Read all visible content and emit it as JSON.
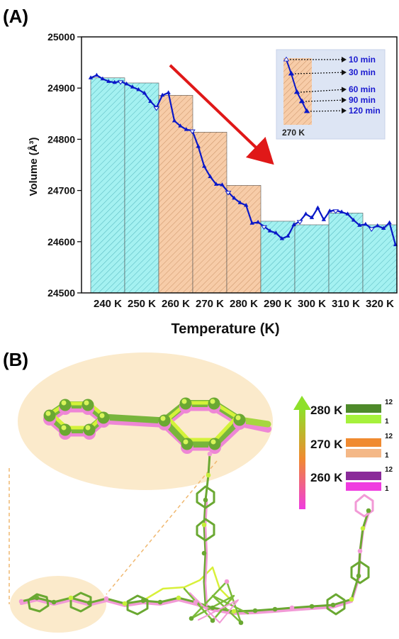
{
  "panel_a": {
    "letter": "(A)"
  },
  "panel_b": {
    "letter": "(B)",
    "legend": {
      "groups": [
        {
          "label": "280 K",
          "bars": [
            {
              "label": "12",
              "color": "#4e8a2a"
            },
            {
              "label": "1",
              "color": "#a6f13c"
            }
          ]
        },
        {
          "label": "270 K",
          "bars": [
            {
              "label": "12",
              "color": "#f08a30"
            },
            {
              "label": "1",
              "color": "#f4b887"
            }
          ]
        },
        {
          "label": "260 K",
          "bars": [
            {
              "label": "12",
              "color": "#8a2a99"
            },
            {
              "label": "1",
              "color": "#f03ce0"
            }
          ]
        }
      ]
    },
    "colors": {
      "zoom_bg": "#fbeccc",
      "green_dark": "#5a9a2c",
      "green_light": "#c6f23a",
      "pink": "#f09ad8",
      "orange": "#f0a060"
    }
  },
  "chart_data": {
    "type": "bar",
    "xlabel": "Temperature (K)",
    "ylabel": "Volume (Å³)",
    "ylim": [
      24500,
      25000
    ],
    "yticks": [
      24500,
      24600,
      24700,
      24800,
      24900,
      25000
    ],
    "categories": [
      "240 K",
      "250 K",
      "260 K",
      "270 K",
      "280 K",
      "290 K",
      "300 K",
      "310 K",
      "320 K"
    ],
    "values": [
      24920,
      24910,
      24886,
      24814,
      24710,
      24640,
      24633,
      24656,
      24633
    ],
    "bar_colors": [
      "#9ef0f0",
      "#9ef0f0",
      "#f6c9a4",
      "#f6c9a4",
      "#f6c9a4",
      "#9ef0f0",
      "#9ef0f0",
      "#9ef0f0",
      "#9ef0f0"
    ],
    "time_series": {
      "color": "#0a18c8",
      "values": [
        24920,
        24925,
        24918,
        24913,
        24911,
        24913,
        24908,
        24902,
        24897,
        24890,
        24874,
        24862,
        24886,
        24891,
        24836,
        24826,
        24819,
        24817,
        24786,
        24747,
        24727,
        24712,
        24711,
        24697,
        24685,
        24676,
        24671,
        24636,
        24638,
        24630,
        24621,
        24617,
        24606,
        24611,
        24633,
        24640,
        24654,
        24647,
        24666,
        24643,
        24660,
        24661,
        24658,
        24654,
        24642,
        24632,
        24634,
        24626,
        24631,
        24626,
        24637,
        24594
      ]
    },
    "inset": {
      "temperature_label": "270 K",
      "times": [
        "10 min",
        "30 min",
        "60 min",
        "90 min",
        "120 min"
      ],
      "bg_color": "#dfe6f4"
    },
    "arrow_color": "#e01818"
  }
}
